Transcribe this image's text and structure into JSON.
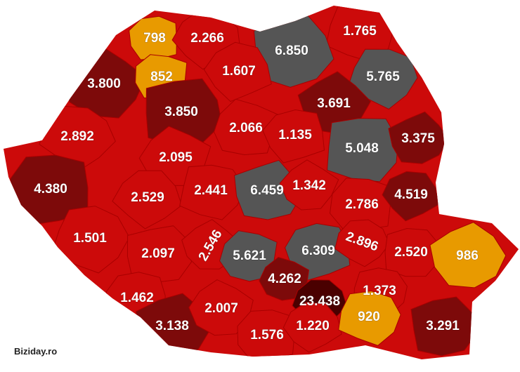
{
  "map": {
    "regions": [
      {
        "label": "798",
        "color": "#e89a00"
      },
      {
        "label": "2.266",
        "color": "#cc0a0a"
      },
      {
        "label": "1.765",
        "color": "#cc0a0a"
      },
      {
        "label": "6.850",
        "color": "#555555"
      },
      {
        "label": "3.800",
        "color": "#7d0a0a"
      },
      {
        "label": "852",
        "color": "#e89a00"
      },
      {
        "label": "1.607",
        "color": "#cc0a0a"
      },
      {
        "label": "5.765",
        "color": "#555555"
      },
      {
        "label": "3.850",
        "color": "#7d0a0a"
      },
      {
        "label": "3.691",
        "color": "#7d0a0a"
      },
      {
        "label": "2.066",
        "color": "#cc0a0a"
      },
      {
        "label": "1.135",
        "color": "#cc0a0a"
      },
      {
        "label": "2.892",
        "color": "#cc0a0a"
      },
      {
        "label": "5.048",
        "color": "#555555"
      },
      {
        "label": "3.375",
        "color": "#7d0a0a"
      },
      {
        "label": "2.095",
        "color": "#cc0a0a"
      },
      {
        "label": "4.380",
        "color": "#7d0a0a"
      },
      {
        "label": "2.529",
        "color": "#cc0a0a"
      },
      {
        "label": "2.441",
        "color": "#cc0a0a"
      },
      {
        "label": "6.459",
        "color": "#555555"
      },
      {
        "label": "1.342",
        "color": "#cc0a0a"
      },
      {
        "label": "2.786",
        "color": "#cc0a0a"
      },
      {
        "label": "4.519",
        "color": "#7d0a0a"
      },
      {
        "label": "1.501",
        "color": "#cc0a0a"
      },
      {
        "label": "2.097",
        "color": "#cc0a0a"
      },
      {
        "label": "2.546",
        "color": "#cc0a0a"
      },
      {
        "label": "5.621",
        "color": "#555555"
      },
      {
        "label": "6.309",
        "color": "#555555"
      },
      {
        "label": "2.896",
        "color": "#cc0a0a"
      },
      {
        "label": "2.520",
        "color": "#cc0a0a"
      },
      {
        "label": "986",
        "color": "#e89a00"
      },
      {
        "label": "4.262",
        "color": "#7d0a0a"
      },
      {
        "label": "1.462",
        "color": "#cc0a0a"
      },
      {
        "label": "23.438",
        "color": "#4a0000"
      },
      {
        "label": "1.373",
        "color": "#cc0a0a"
      },
      {
        "label": "3.138",
        "color": "#7d0a0a"
      },
      {
        "label": "2.007",
        "color": "#cc0a0a"
      },
      {
        "label": "1.576",
        "color": "#cc0a0a"
      },
      {
        "label": "1.220",
        "color": "#cc0a0a"
      },
      {
        "label": "920",
        "color": "#e89a00"
      },
      {
        "label": "3.291",
        "color": "#7d0a0a"
      }
    ],
    "credit": "Biziday.ro"
  }
}
